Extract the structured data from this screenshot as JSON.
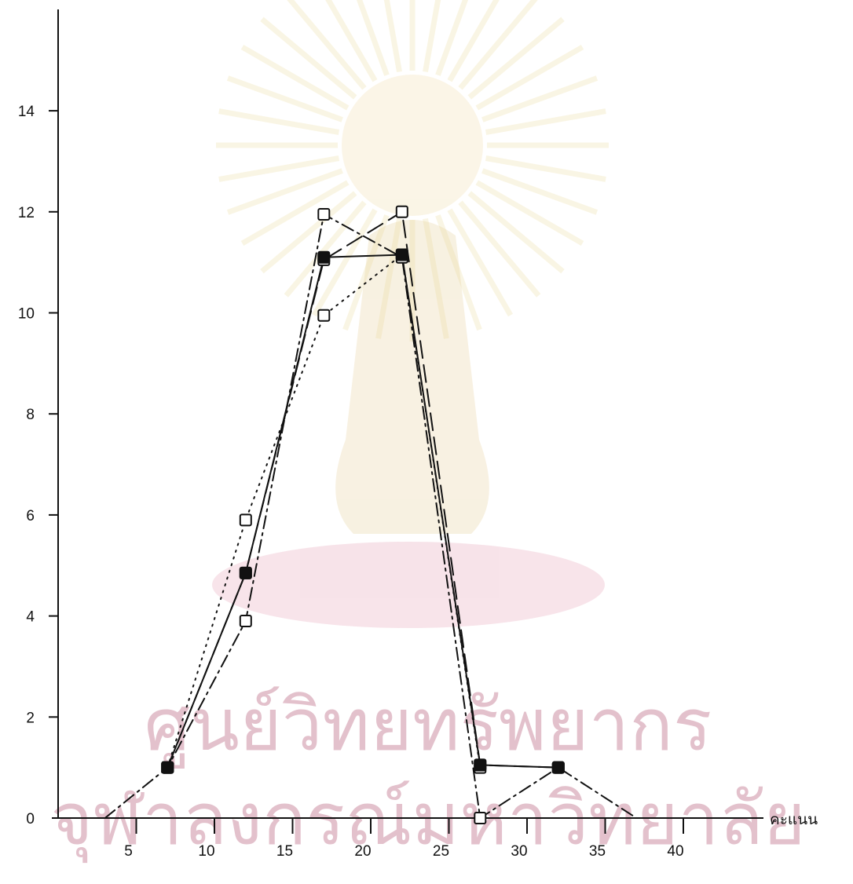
{
  "chart_data": {
    "type": "line",
    "title": "",
    "xlabel": "คะแนน",
    "ylabel": "",
    "xlim": [
      0,
      42
    ],
    "ylim": [
      0,
      15
    ],
    "x_ticks": [
      5,
      10,
      15,
      20,
      25,
      30,
      35,
      40
    ],
    "y_ticks": [
      0,
      2,
      4,
      6,
      8,
      10,
      12,
      14
    ],
    "grid": false,
    "legend": "none",
    "colors": {
      "axis": "#111111",
      "series": "#111111",
      "watermark": "#c9859a"
    },
    "series": [
      {
        "style": "solid",
        "marker": "filled-square",
        "x": [
          7,
          12,
          17,
          22,
          27,
          32
        ],
        "y": [
          1,
          4.85,
          11.1,
          11.15,
          1.05,
          1
        ]
      },
      {
        "style": "dotted",
        "marker": "open-square",
        "x": [
          7,
          12,
          17,
          22,
          27
        ],
        "y": [
          1,
          5.9,
          9.95,
          11.15,
          1
        ]
      },
      {
        "style": "dash-dot",
        "marker": "open-square",
        "x": [
          3,
          7,
          12,
          17,
          22,
          27,
          32,
          37
        ],
        "y": [
          0,
          1,
          3.9,
          11.95,
          11.1,
          0,
          1,
          0
        ]
      },
      {
        "style": "long-dash",
        "marker": "open-square",
        "x": [
          7,
          12,
          17,
          22,
          27,
          32
        ],
        "y": [
          1,
          4.85,
          11.05,
          12,
          1.05,
          1
        ]
      }
    ]
  },
  "watermark": {
    "line1": "ศูนย์วิทยทรัพยากร",
    "line2": "จุฬาลงกรณ์มหาวิทยาลัย",
    "seal": "university-seal-icon"
  }
}
